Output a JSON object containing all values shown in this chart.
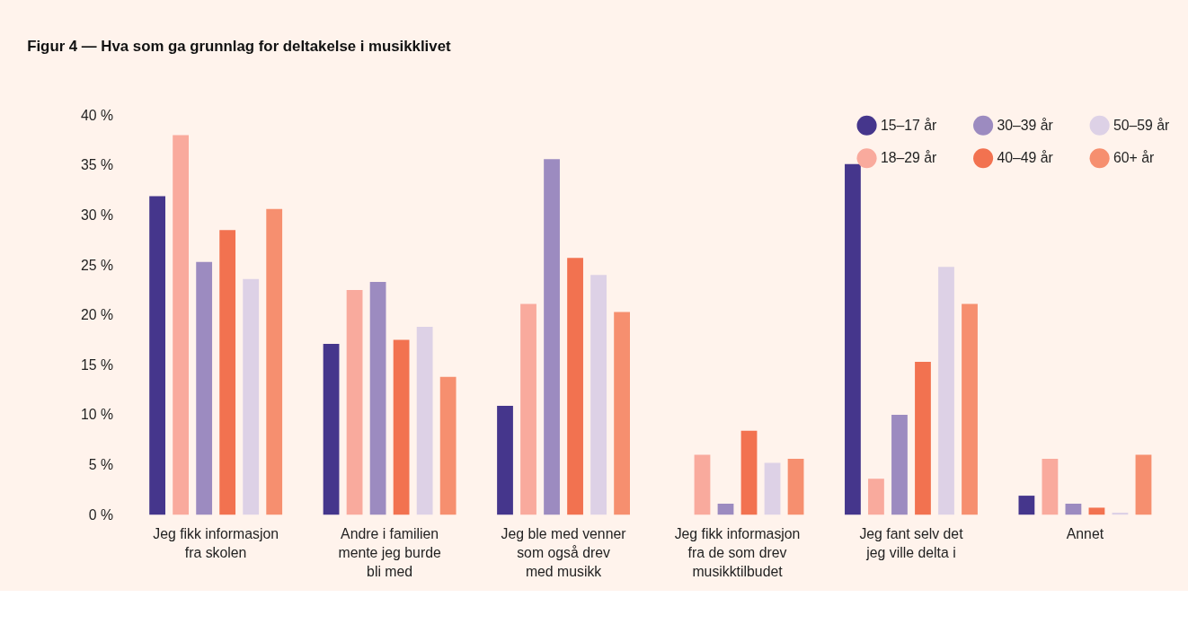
{
  "chart_data": {
    "type": "bar",
    "title": "Figur 4 — Hva som ga grunnlag for deltakelse i musikklivet",
    "categories": [
      "Jeg fikk informasjon\nfra skolen",
      "Andre i familien\nmente jeg burde\nbli med",
      "Jeg ble med venner\nsom også drev\nmed musikk",
      "Jeg fikk informasjon\nfra de som drev\nmusikktilbudet",
      "Jeg fant selv det\njeg ville delta i",
      "Annet"
    ],
    "series": [
      {
        "name": "15–17 år",
        "color": "#45368c",
        "values": [
          31.9,
          17.1,
          10.9,
          null,
          35.1,
          1.9
        ]
      },
      {
        "name": "18–29 år",
        "color": "#f9aa9d",
        "values": [
          38.0,
          22.5,
          21.1,
          6.0,
          3.6,
          5.6
        ]
      },
      {
        "name": "30–39 år",
        "color": "#9c8bc0",
        "values": [
          25.3,
          23.3,
          35.6,
          1.1,
          10.0,
          1.1
        ]
      },
      {
        "name": "40–49 år",
        "color": "#f27250",
        "values": [
          28.5,
          17.5,
          25.7,
          8.4,
          15.3,
          0.7
        ]
      },
      {
        "name": "50–59 år",
        "color": "#ddd1e6",
        "values": [
          23.6,
          18.8,
          24.0,
          5.2,
          24.8,
          0.2
        ]
      },
      {
        "name": "60+ år",
        "color": "#f68f6f",
        "values": [
          30.6,
          13.8,
          20.3,
          5.6,
          21.1,
          6.0
        ]
      }
    ],
    "ylim": [
      0,
      40
    ],
    "yticks": [
      {
        "value": 0,
        "label": "0 %"
      },
      {
        "value": 5,
        "label": "5 %"
      },
      {
        "value": 10,
        "label": "10 %"
      },
      {
        "value": 15,
        "label": "15 %"
      },
      {
        "value": 20,
        "label": "20 %"
      },
      {
        "value": 25,
        "label": "25 %"
      },
      {
        "value": 30,
        "label": "30 %"
      },
      {
        "value": 35,
        "label": "35 %"
      },
      {
        "value": 40,
        "label": "40 %"
      }
    ],
    "grid": false,
    "legend": "top right"
  }
}
